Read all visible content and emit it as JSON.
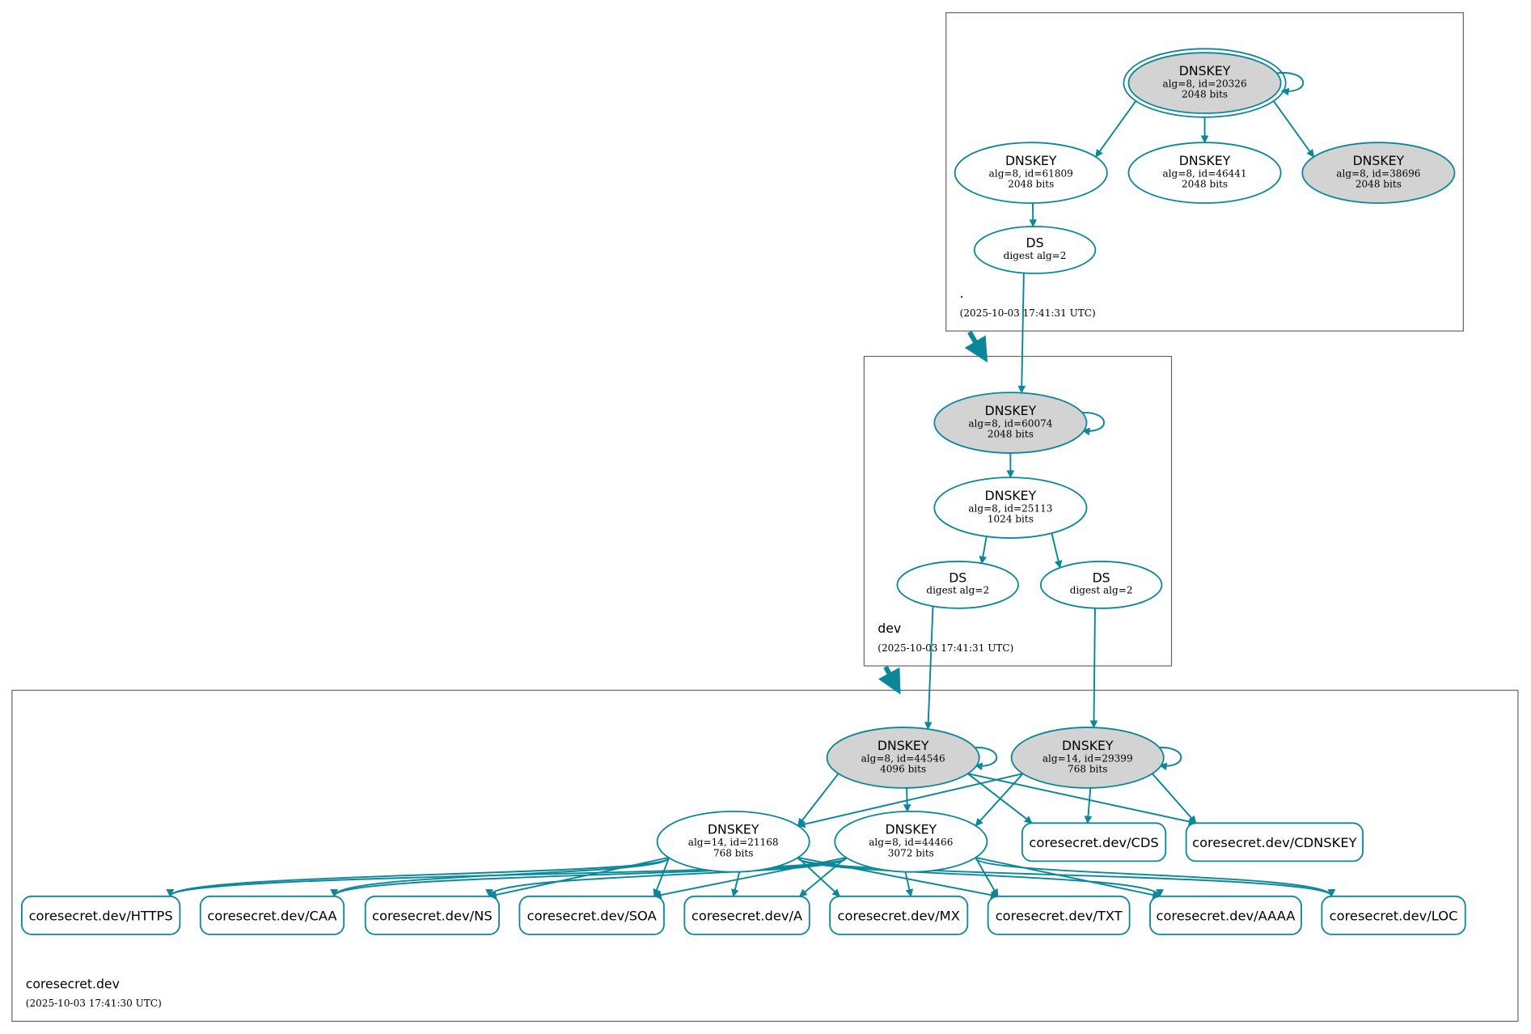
{
  "colors": {
    "edge": "#0a8799",
    "node_stroke": "#0a8799",
    "signing_fill": "#d3d3d3",
    "plain_fill": "#ffffff",
    "cluster_border": "#666666"
  },
  "clusters": [
    {
      "id": "root",
      "name": ".",
      "timestamp": "(2025-10-03 17:41:31 UTC)"
    },
    {
      "id": "dev",
      "name": "dev",
      "timestamp": "(2025-10-03 17:41:31 UTC)"
    },
    {
      "id": "zone",
      "name": "coresecret.dev",
      "timestamp": "(2025-10-03 17:41:30 UTC)"
    }
  ],
  "nodes": [
    {
      "id": "k20326",
      "title": "DNSKEY",
      "line2": "alg=8, id=20326",
      "line3": "2048 bits",
      "signing": true,
      "trust_anchor": true
    },
    {
      "id": "k61809",
      "title": "DNSKEY",
      "line2": "alg=8, id=61809",
      "line3": "2048 bits",
      "signing": false
    },
    {
      "id": "k46441",
      "title": "DNSKEY",
      "line2": "alg=8, id=46441",
      "line3": "2048 bits",
      "signing": false
    },
    {
      "id": "k38696",
      "title": "DNSKEY",
      "line2": "alg=8, id=38696",
      "line3": "2048 bits",
      "signing": true
    },
    {
      "id": "dsroot",
      "title": "DS",
      "line2": "digest alg=2",
      "signing": false
    },
    {
      "id": "k60074",
      "title": "DNSKEY",
      "line2": "alg=8, id=60074",
      "line3": "2048 bits",
      "signing": true
    },
    {
      "id": "k25113",
      "title": "DNSKEY",
      "line2": "alg=8, id=25113",
      "line3": "1024 bits",
      "signing": false
    },
    {
      "id": "dsdev1",
      "title": "DS",
      "line2": "digest alg=2",
      "signing": false
    },
    {
      "id": "dsdev2",
      "title": "DS",
      "line2": "digest alg=2",
      "signing": false
    },
    {
      "id": "k44546",
      "title": "DNSKEY",
      "line2": "alg=8, id=44546",
      "line3": "4096 bits",
      "signing": true
    },
    {
      "id": "k29399",
      "title": "DNSKEY",
      "line2": "alg=14, id=29399",
      "line3": "768 bits",
      "signing": true
    },
    {
      "id": "k21168",
      "title": "DNSKEY",
      "line2": "alg=14, id=21168",
      "line3": "768 bits",
      "signing": false
    },
    {
      "id": "k44466",
      "title": "DNSKEY",
      "line2": "alg=8, id=44466",
      "line3": "3072 bits",
      "signing": false
    }
  ],
  "records": [
    {
      "id": "cds",
      "label": "coresecret.dev/CDS"
    },
    {
      "id": "cdnskey",
      "label": "coresecret.dev/CDNSKEY"
    },
    {
      "id": "https",
      "label": "coresecret.dev/HTTPS"
    },
    {
      "id": "caa",
      "label": "coresecret.dev/CAA"
    },
    {
      "id": "ns",
      "label": "coresecret.dev/NS"
    },
    {
      "id": "soa",
      "label": "coresecret.dev/SOA"
    },
    {
      "id": "a",
      "label": "coresecret.dev/A"
    },
    {
      "id": "mx",
      "label": "coresecret.dev/MX"
    },
    {
      "id": "txt",
      "label": "coresecret.dev/TXT"
    },
    {
      "id": "aaaa",
      "label": "coresecret.dev/AAAA"
    },
    {
      "id": "loc",
      "label": "coresecret.dev/LOC"
    }
  ],
  "edges": [
    [
      "k20326",
      "k20326"
    ],
    [
      "k20326",
      "k61809"
    ],
    [
      "k20326",
      "k46441"
    ],
    [
      "k20326",
      "k38696"
    ],
    [
      "k61809",
      "dsroot"
    ],
    [
      "dsroot",
      "k60074"
    ],
    [
      "k60074",
      "k60074"
    ],
    [
      "k60074",
      "k25113"
    ],
    [
      "k25113",
      "dsdev1"
    ],
    [
      "k25113",
      "dsdev2"
    ],
    [
      "dsdev1",
      "k44546"
    ],
    [
      "dsdev2",
      "k29399"
    ],
    [
      "k44546",
      "k44546"
    ],
    [
      "k29399",
      "k29399"
    ],
    [
      "k44546",
      "k21168"
    ],
    [
      "k44546",
      "k44466"
    ],
    [
      "k44546",
      "cds"
    ],
    [
      "k44546",
      "cdnskey"
    ],
    [
      "k29399",
      "k21168"
    ],
    [
      "k29399",
      "k44466"
    ],
    [
      "k29399",
      "cds"
    ],
    [
      "k29399",
      "cdnskey"
    ],
    [
      "k21168",
      "https"
    ],
    [
      "k21168",
      "caa"
    ],
    [
      "k21168",
      "ns"
    ],
    [
      "k21168",
      "soa"
    ],
    [
      "k21168",
      "a"
    ],
    [
      "k21168",
      "mx"
    ],
    [
      "k21168",
      "txt"
    ],
    [
      "k21168",
      "aaaa"
    ],
    [
      "k21168",
      "loc"
    ],
    [
      "k44466",
      "https"
    ],
    [
      "k44466",
      "caa"
    ],
    [
      "k44466",
      "ns"
    ],
    [
      "k44466",
      "soa"
    ],
    [
      "k44466",
      "a"
    ],
    [
      "k44466",
      "mx"
    ],
    [
      "k44466",
      "txt"
    ],
    [
      "k44466",
      "aaaa"
    ],
    [
      "k44466",
      "loc"
    ]
  ],
  "delegations": [
    [
      "root",
      "dev"
    ],
    [
      "dev",
      "zone"
    ]
  ]
}
